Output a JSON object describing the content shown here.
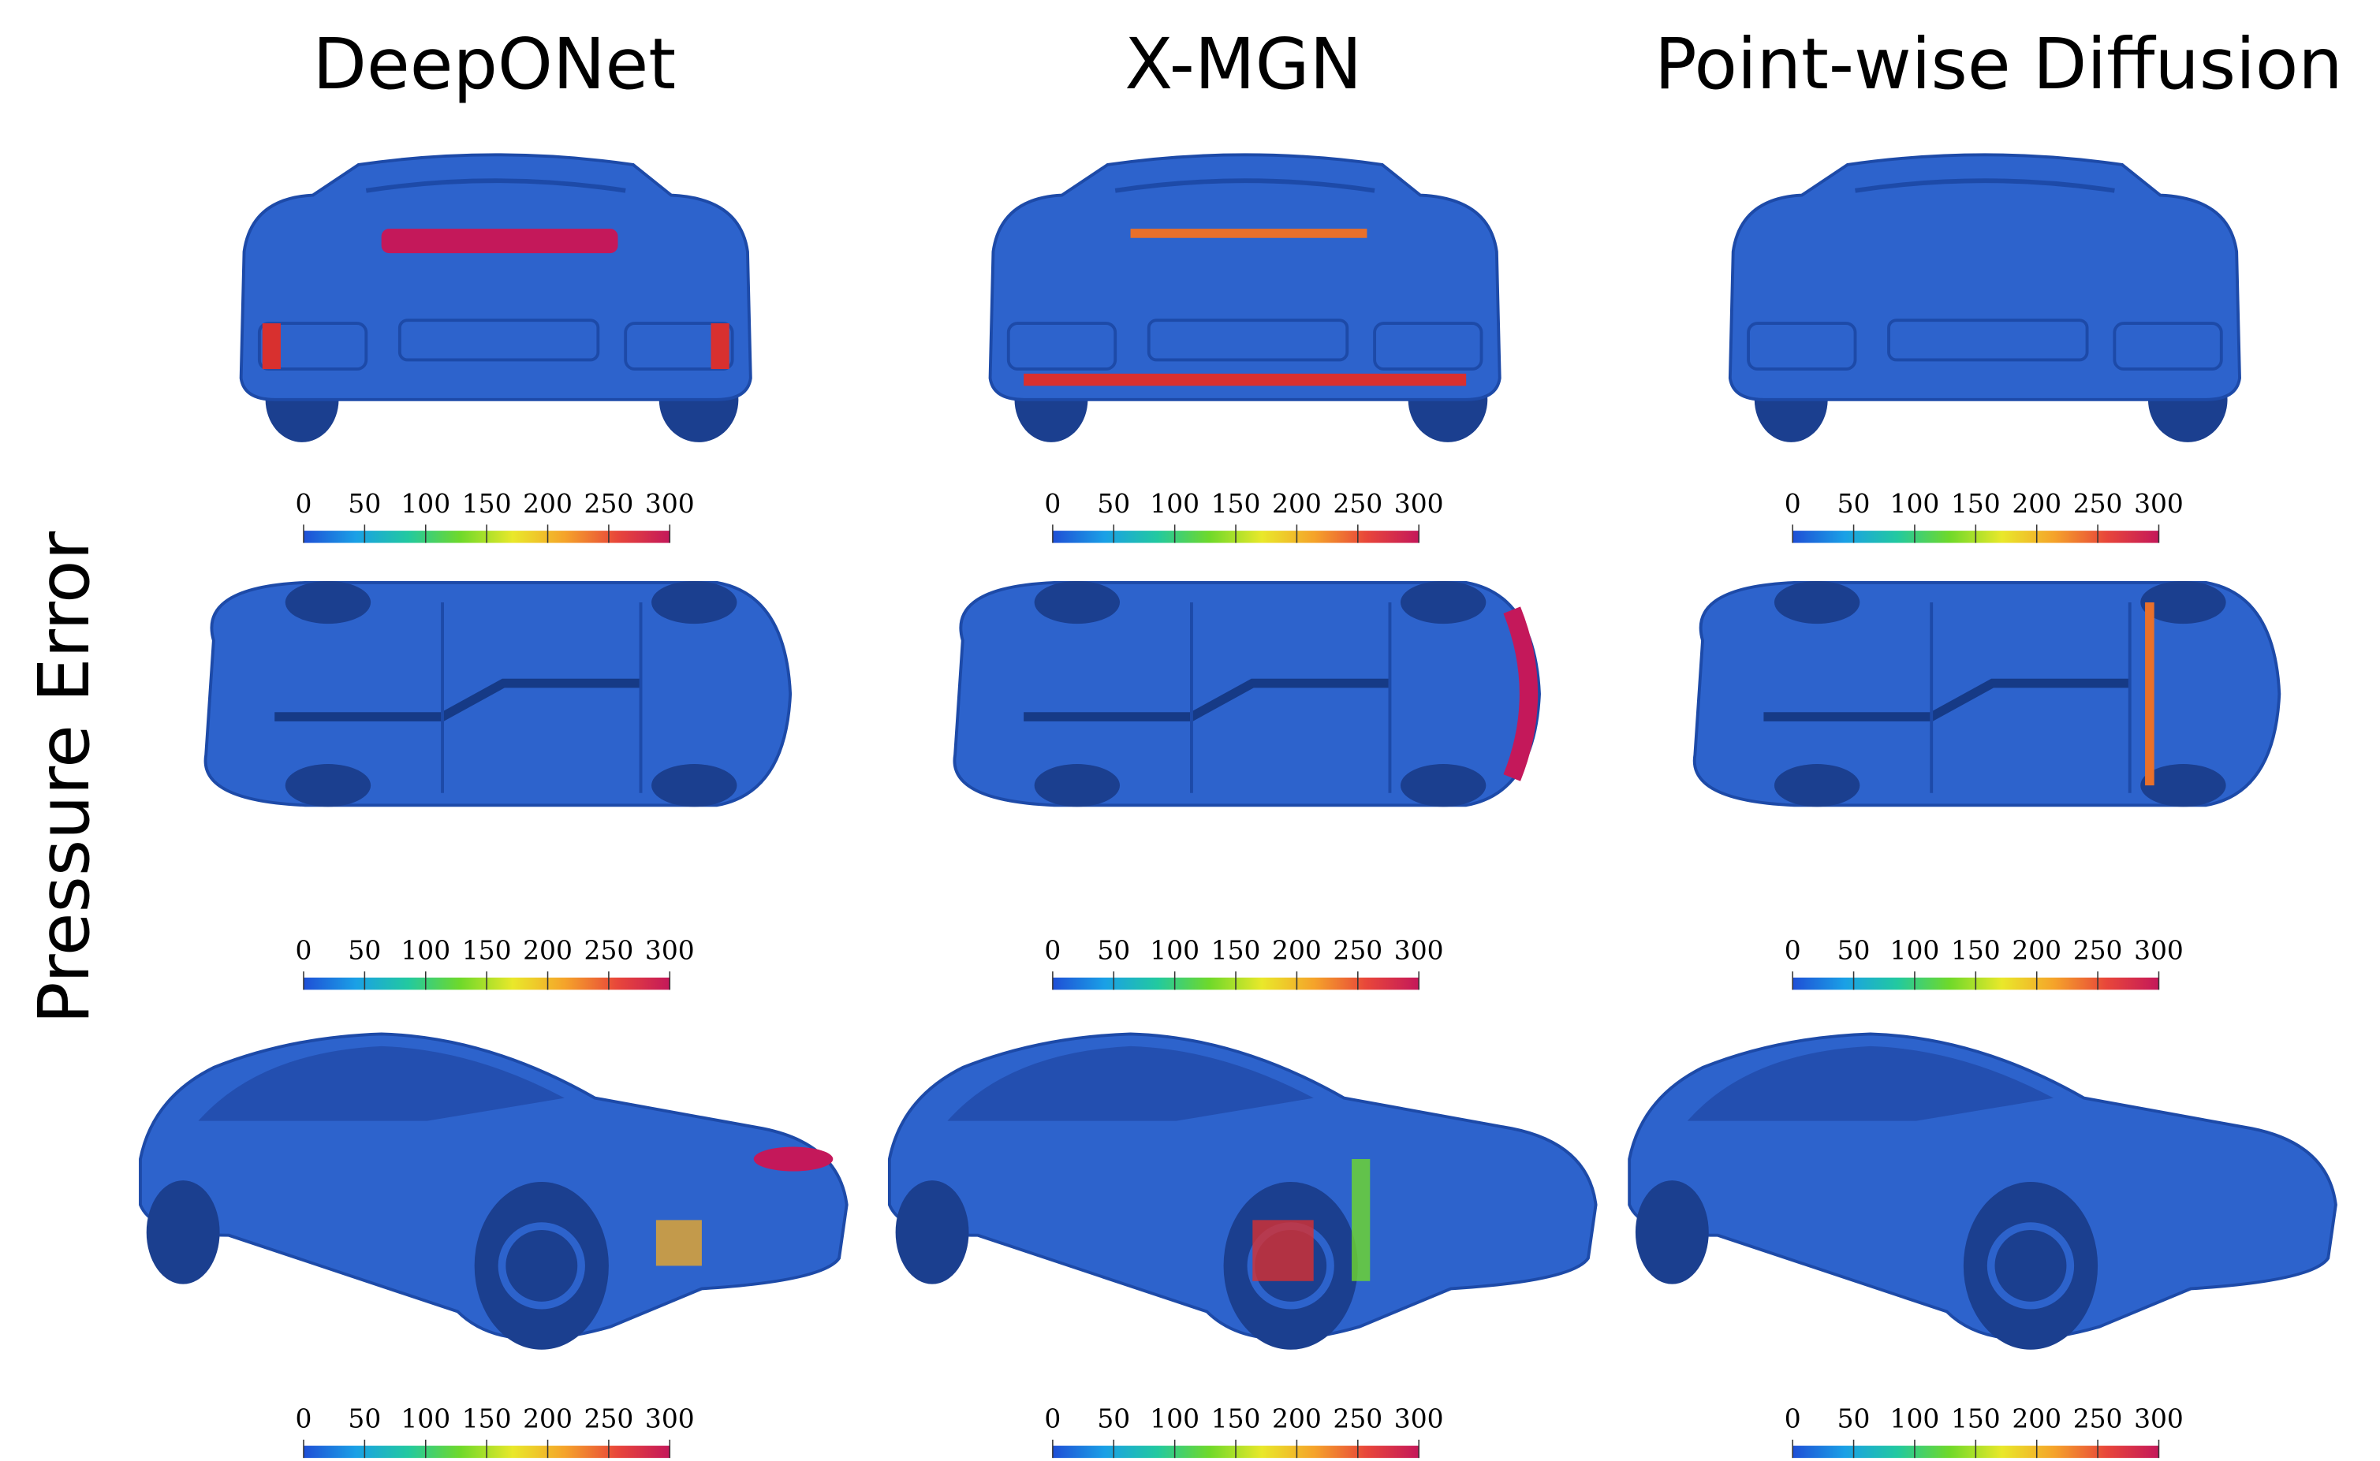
{
  "titles": [
    "DeepONet",
    "X-MGN",
    "Point-wise Diffusion"
  ],
  "row_label": "Pressure Error",
  "colorbar": {
    "lim": [
      0,
      300
    ],
    "ticks": [
      0,
      50,
      100,
      150,
      200,
      250,
      300
    ],
    "colors": [
      "#1f4fd6",
      "#1aa0e6",
      "#22c9a0",
      "#6fd92a",
      "#e9e82a",
      "#f5a32a",
      "#e8463a",
      "#c4185a"
    ]
  }
}
